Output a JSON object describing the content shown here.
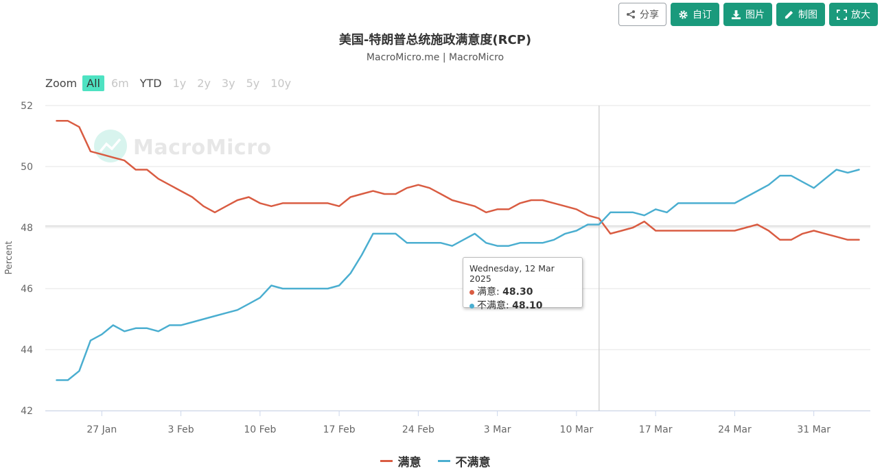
{
  "toolbar": {
    "share": "分享",
    "customize": "自订",
    "image": "图片",
    "draw": "制图",
    "expand": "放大"
  },
  "zoom": {
    "label": "Zoom",
    "options": [
      "All",
      "6m",
      "YTD",
      "1y",
      "2y",
      "3y",
      "5y",
      "10y"
    ],
    "active": "All"
  },
  "watermark": "MacroMicro",
  "tooltip": {
    "date": "Wednesday, 12 Mar 2025",
    "rows": [
      {
        "name": "满意",
        "value": "48.30"
      },
      {
        "name": "不满意",
        "value": "48.10"
      }
    ]
  },
  "chart_data": {
    "type": "line",
    "title": "美国-特朗普总统施政满意度(RCP)",
    "subtitle": "MacroMicro.me | MacroMicro",
    "ylabel": "Percent",
    "ylim": [
      42,
      52
    ],
    "yticks": [
      42,
      44,
      46,
      48,
      50,
      52
    ],
    "xlim": [
      "2025-01-22",
      "2025-04-05"
    ],
    "xticks": [
      {
        "date": "2025-01-27",
        "label": "27 Jan"
      },
      {
        "date": "2025-02-03",
        "label": "3 Feb"
      },
      {
        "date": "2025-02-10",
        "label": "10 Feb"
      },
      {
        "date": "2025-02-17",
        "label": "17 Feb"
      },
      {
        "date": "2025-02-24",
        "label": "24 Feb"
      },
      {
        "date": "2025-03-03",
        "label": "3 Mar"
      },
      {
        "date": "2025-03-10",
        "label": "10 Mar"
      },
      {
        "date": "2025-03-17",
        "label": "17 Mar"
      },
      {
        "date": "2025-03-24",
        "label": "24 Mar"
      },
      {
        "date": "2025-03-31",
        "label": "31 Mar"
      }
    ],
    "grid": true,
    "legend_position": "bottom",
    "crosshair_date": "2025-03-12",
    "reference_line_y": 48.05,
    "x": [
      "2025-01-23",
      "2025-01-24",
      "2025-01-25",
      "2025-01-26",
      "2025-01-27",
      "2025-01-28",
      "2025-01-29",
      "2025-01-30",
      "2025-01-31",
      "2025-02-01",
      "2025-02-02",
      "2025-02-03",
      "2025-02-04",
      "2025-02-05",
      "2025-02-06",
      "2025-02-07",
      "2025-02-08",
      "2025-02-09",
      "2025-02-10",
      "2025-02-11",
      "2025-02-12",
      "2025-02-13",
      "2025-02-14",
      "2025-02-15",
      "2025-02-16",
      "2025-02-17",
      "2025-02-18",
      "2025-02-19",
      "2025-02-20",
      "2025-02-21",
      "2025-02-22",
      "2025-02-23",
      "2025-02-24",
      "2025-02-25",
      "2025-02-26",
      "2025-02-27",
      "2025-02-28",
      "2025-03-01",
      "2025-03-02",
      "2025-03-03",
      "2025-03-04",
      "2025-03-05",
      "2025-03-06",
      "2025-03-07",
      "2025-03-08",
      "2025-03-09",
      "2025-03-10",
      "2025-03-11",
      "2025-03-12",
      "2025-03-13",
      "2025-03-14",
      "2025-03-15",
      "2025-03-16",
      "2025-03-17",
      "2025-03-18",
      "2025-03-19",
      "2025-03-20",
      "2025-03-21",
      "2025-03-22",
      "2025-03-23",
      "2025-03-24",
      "2025-03-25",
      "2025-03-26",
      "2025-03-27",
      "2025-03-28",
      "2025-03-29",
      "2025-03-30",
      "2025-03-31",
      "2025-04-01",
      "2025-04-02",
      "2025-04-03",
      "2025-04-04"
    ],
    "series": [
      {
        "name": "满意",
        "color": "#d95c42",
        "values": [
          51.5,
          51.5,
          51.3,
          50.5,
          50.4,
          50.3,
          50.2,
          49.9,
          49.9,
          49.6,
          49.4,
          49.2,
          49.0,
          48.7,
          48.5,
          48.7,
          48.9,
          49.0,
          48.8,
          48.7,
          48.8,
          48.8,
          48.8,
          48.8,
          48.8,
          48.7,
          49.0,
          49.1,
          49.2,
          49.1,
          49.1,
          49.3,
          49.4,
          49.3,
          49.1,
          48.9,
          48.8,
          48.7,
          48.5,
          48.6,
          48.6,
          48.8,
          48.9,
          48.9,
          48.8,
          48.7,
          48.6,
          48.4,
          48.3,
          47.8,
          47.9,
          48.0,
          48.2,
          47.9,
          47.9,
          47.9,
          47.9,
          47.9,
          47.9,
          47.9,
          47.9,
          48.0,
          48.1,
          47.9,
          47.6,
          47.6,
          47.8,
          47.9,
          47.8,
          47.7,
          47.6,
          47.6
        ]
      },
      {
        "name": "不满意",
        "color": "#4aaed0",
        "values": [
          43.0,
          43.0,
          43.3,
          44.3,
          44.5,
          44.8,
          44.6,
          44.7,
          44.7,
          44.6,
          44.8,
          44.8,
          44.9,
          45.0,
          45.1,
          45.2,
          45.3,
          45.5,
          45.7,
          46.1,
          46.0,
          46.0,
          46.0,
          46.0,
          46.0,
          46.1,
          46.5,
          47.1,
          47.8,
          47.8,
          47.8,
          47.5,
          47.5,
          47.5,
          47.5,
          47.4,
          47.6,
          47.8,
          47.5,
          47.4,
          47.4,
          47.5,
          47.5,
          47.5,
          47.6,
          47.8,
          47.9,
          48.1,
          48.1,
          48.5,
          48.5,
          48.5,
          48.4,
          48.6,
          48.5,
          48.8,
          48.8,
          48.8,
          48.8,
          48.8,
          48.8,
          49.0,
          49.2,
          49.4,
          49.7,
          49.7,
          49.5,
          49.3,
          49.6,
          49.9,
          49.8,
          49.9
        ]
      }
    ]
  }
}
